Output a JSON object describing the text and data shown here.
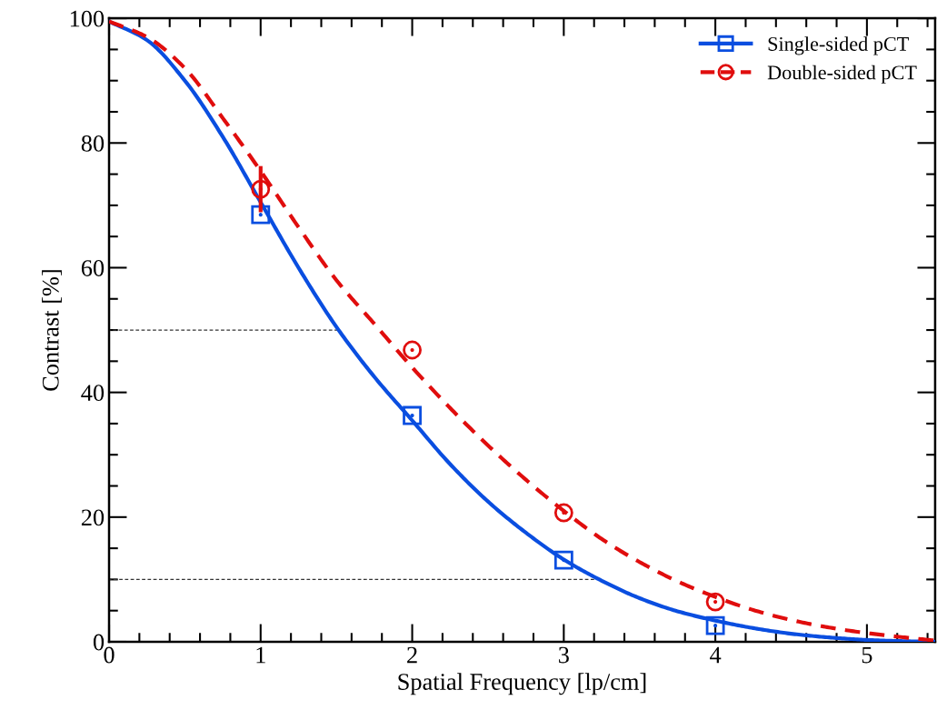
{
  "chart_data": {
    "type": "line",
    "xlabel": "Spatial Frequency [lp/cm]",
    "ylabel": "Contrast [%]",
    "xlim": [
      0,
      5.45
    ],
    "ylim": [
      0,
      100
    ],
    "xticks": [
      0,
      1,
      2,
      3,
      4,
      5
    ],
    "yticks": [
      0,
      20,
      40,
      60,
      80,
      100
    ],
    "grid": false,
    "legend": "top right",
    "series": [
      {
        "name": "Single-sided pCT",
        "color": "#0a4ee0",
        "line_style": "solid",
        "marker": "none",
        "x": [
          0,
          0.25,
          0.5,
          0.75,
          1,
          1.25,
          1.5,
          1.75,
          2,
          2.25,
          2.5,
          2.75,
          3,
          3.25,
          3.5,
          3.75,
          4,
          4.25,
          4.5,
          4.75,
          5,
          5.25,
          5.45
        ],
        "values": [
          99.5,
          96.5,
          90,
          81,
          70.5,
          60,
          50.5,
          42.5,
          35.5,
          28.5,
          22.5,
          17.5,
          13.2,
          9.8,
          7,
          4.9,
          3.4,
          2.2,
          1.3,
          0.7,
          0.3,
          0.1,
          0
        ]
      },
      {
        "name": "Double-sided pCT",
        "color": "#e00d0d",
        "line_style": "dashed",
        "marker": "none",
        "x": [
          0,
          0.25,
          0.5,
          0.75,
          1,
          1.25,
          1.5,
          1.75,
          2,
          2.25,
          2.5,
          2.75,
          3,
          3.25,
          3.5,
          3.75,
          4,
          4.25,
          4.5,
          4.75,
          5,
          5.25,
          5.45
        ],
        "values": [
          99.5,
          97,
          92,
          84,
          75.5,
          66.5,
          58,
          51,
          44,
          37.5,
          31.5,
          26,
          21,
          16.5,
          12.8,
          9.7,
          7.2,
          5.1,
          3.5,
          2.3,
          1.4,
          0.7,
          0.2
        ]
      },
      {
        "type": "scatter",
        "color": "#0a4ee0",
        "marker": "square",
        "x": [
          1,
          2,
          3,
          4
        ],
        "values": [
          68.5,
          36.3,
          13.1,
          2.6
        ]
      },
      {
        "type": "scatter",
        "color": "#e00d0d",
        "marker": "circle",
        "x": [
          1,
          2,
          3,
          4
        ],
        "values": [
          72.6,
          46.8,
          20.7,
          6.4
        ],
        "errors": [
          3.7,
          null,
          null,
          null
        ]
      },
      {
        "color": "#333333",
        "line_style": "dashed",
        "marker": "none",
        "x": [
          0,
          1.51
        ],
        "values": [
          50,
          50
        ]
      },
      {
        "color": "#333333",
        "line_style": "dashed",
        "marker": "none",
        "x": [
          0,
          3.2
        ],
        "values": [
          10,
          10
        ]
      }
    ]
  }
}
